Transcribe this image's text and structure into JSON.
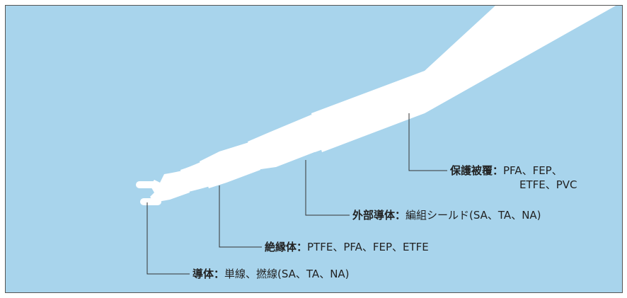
{
  "colors": {
    "background": "#a8d4ec",
    "cable": "#ffffff",
    "leader_line": "#333333",
    "text": "#222222"
  },
  "labels": {
    "jacket": {
      "name": "保護被覆：",
      "line1": "PFA、FEP、",
      "line2": "ETFE、PVC"
    },
    "outer_conductor": {
      "name": "外部導体：",
      "value": "編組シールド(SA、TA、NA)"
    },
    "insulator": {
      "name": "絶縁体：",
      "value": "PTFE、PFA、FEP、ETFE"
    },
    "conductor": {
      "name": "導体：",
      "value": "単線、撚線(SA、TA、NA)"
    }
  }
}
